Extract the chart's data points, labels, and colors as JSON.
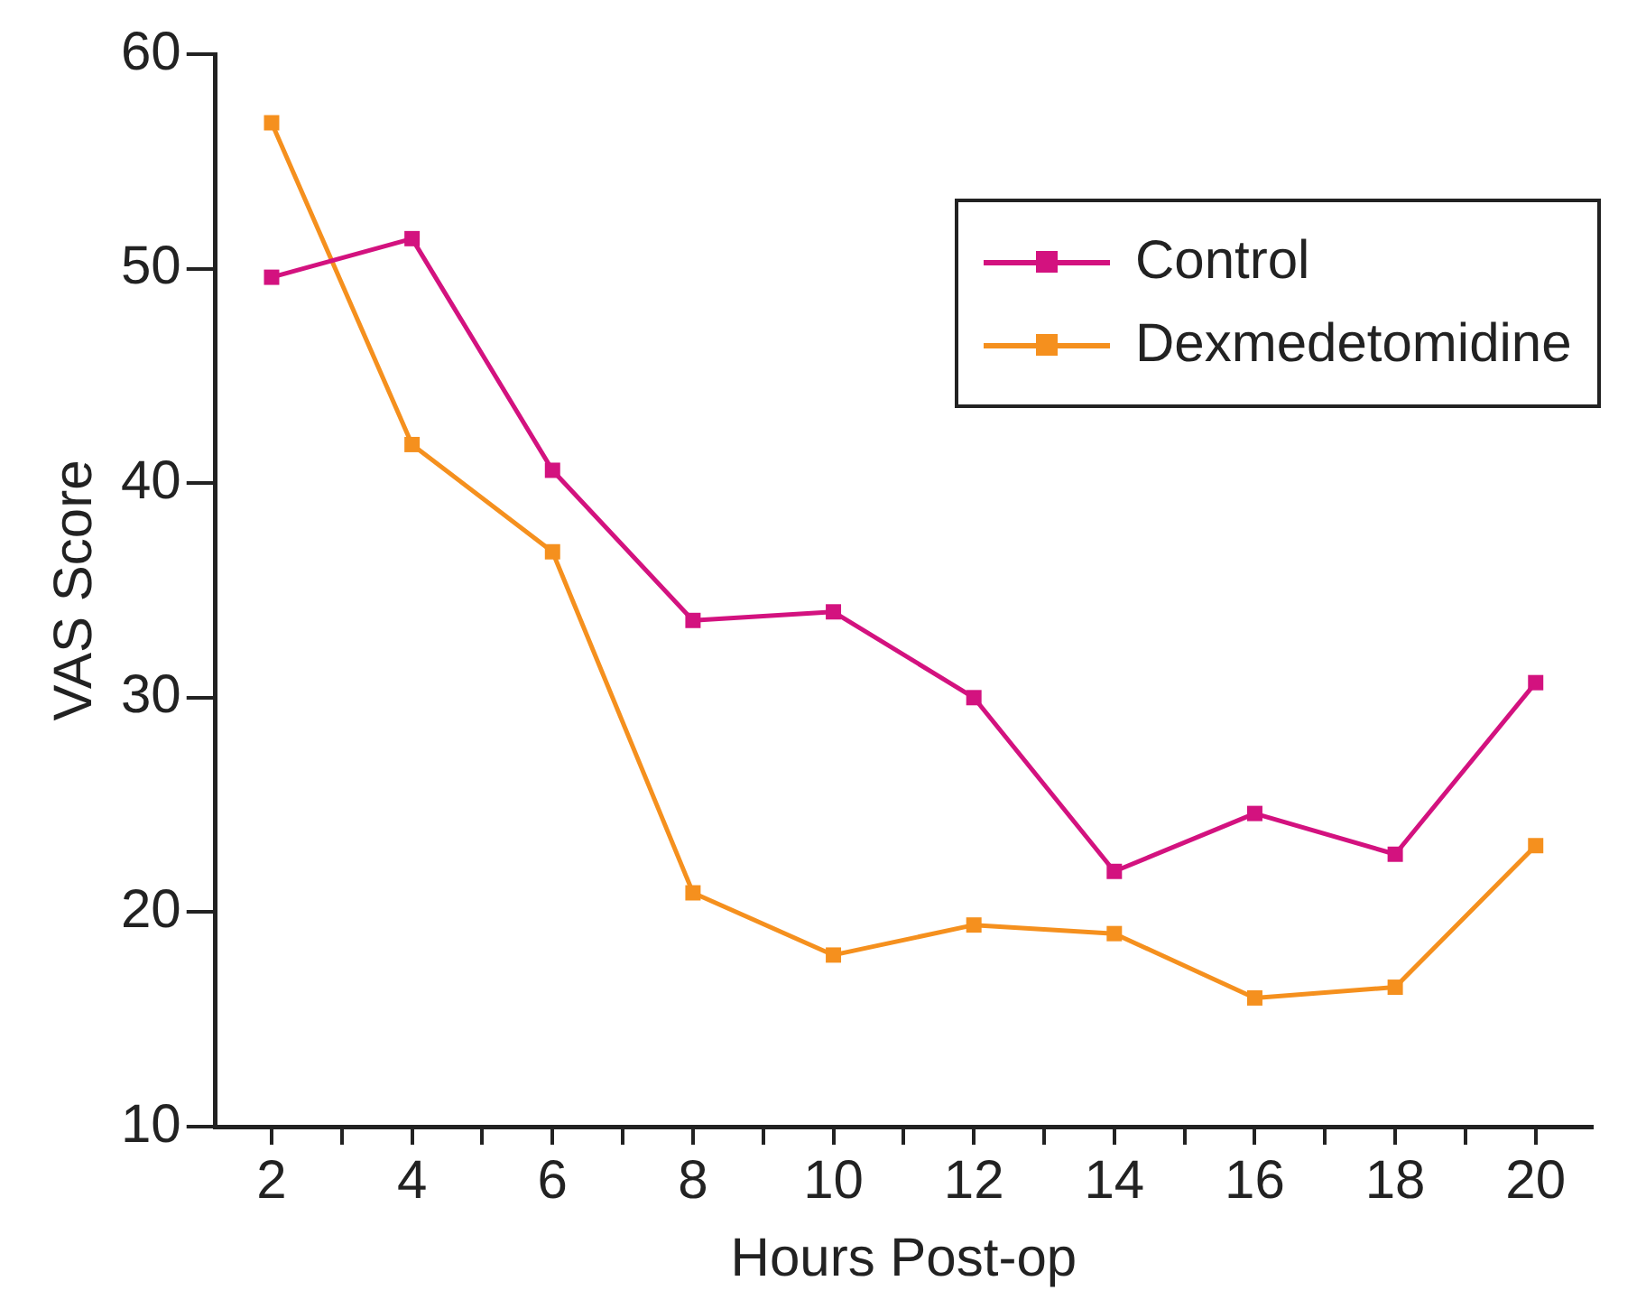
{
  "chart_data": {
    "type": "line",
    "xlabel": "Hours Post-op",
    "ylabel": "VAS Score",
    "x": [
      2,
      4,
      6,
      8,
      10,
      12,
      14,
      16,
      18,
      20
    ],
    "series": [
      {
        "name": "Control",
        "color": "#d3127f",
        "values": [
          49.6,
          51.4,
          40.6,
          33.6,
          34.0,
          30.0,
          21.9,
          24.6,
          22.7,
          30.7
        ]
      },
      {
        "name": "Dexmedetomidine",
        "color": "#f5901e",
        "values": [
          56.8,
          41.8,
          36.8,
          20.9,
          18.0,
          19.4,
          19.0,
          16.0,
          16.5,
          23.1
        ]
      }
    ],
    "xlim": [
      1.2,
      20.8
    ],
    "xticks": [
      2,
      {
        "value": 3,
        "label": null
      },
      4,
      {
        "value": 5,
        "label": null
      },
      6,
      {
        "value": 7,
        "label": null
      },
      8,
      {
        "value": 9,
        "label": null
      },
      10,
      {
        "value": 11,
        "label": null
      },
      12,
      {
        "value": 13,
        "label": null
      },
      14,
      {
        "value": 15,
        "label": null
      },
      16,
      {
        "value": 17,
        "label": null
      },
      18,
      {
        "value": 19,
        "label": null
      },
      20
    ],
    "ylim": [
      10,
      60
    ],
    "yticks": [
      10,
      20,
      30,
      40,
      50,
      60
    ],
    "grid": false,
    "legend": "top right",
    "marker": "square",
    "line_style": "solid"
  }
}
